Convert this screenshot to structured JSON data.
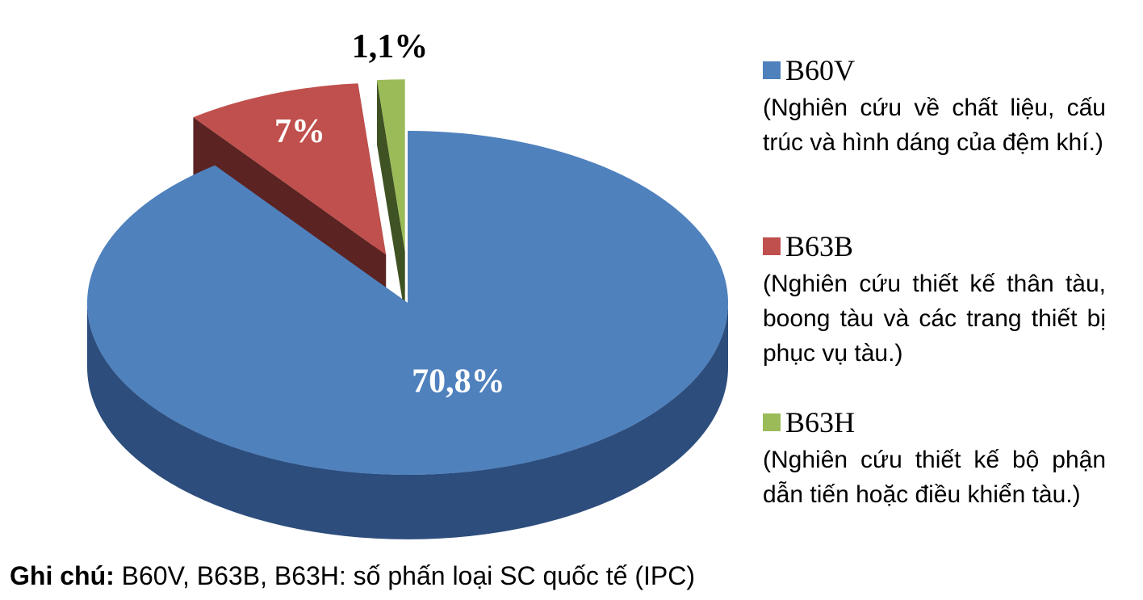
{
  "chart_data": {
    "type": "pie3d",
    "categories": [
      "B60V",
      "B63B",
      "B63H"
    ],
    "category_descriptions": [
      "(Nghiên cứu về chất liệu, cấu trúc và hình dáng của đệm khí.)",
      "(Nghiên cứu thiết kế thân tàu, boong tàu và các trang thiết bị phục vụ tàu.)",
      "(Nghiên cứu thiết kế bộ phận dẫn tiến hoặc điều khiển tàu.)"
    ],
    "values": [
      70.8,
      7,
      1.1
    ],
    "value_labels": [
      "70,8%",
      "7%",
      "1,1%"
    ],
    "colors": [
      "#4f81bd",
      "#c0504d",
      "#9bbb59"
    ],
    "side_colors": [
      "#2d4d7c",
      "#5b2322",
      "#3f5223"
    ],
    "note_label": "Ghi chú:",
    "note": "B60V, B63B, B63H: số phấn loại SC quốc tế (IPC)"
  }
}
